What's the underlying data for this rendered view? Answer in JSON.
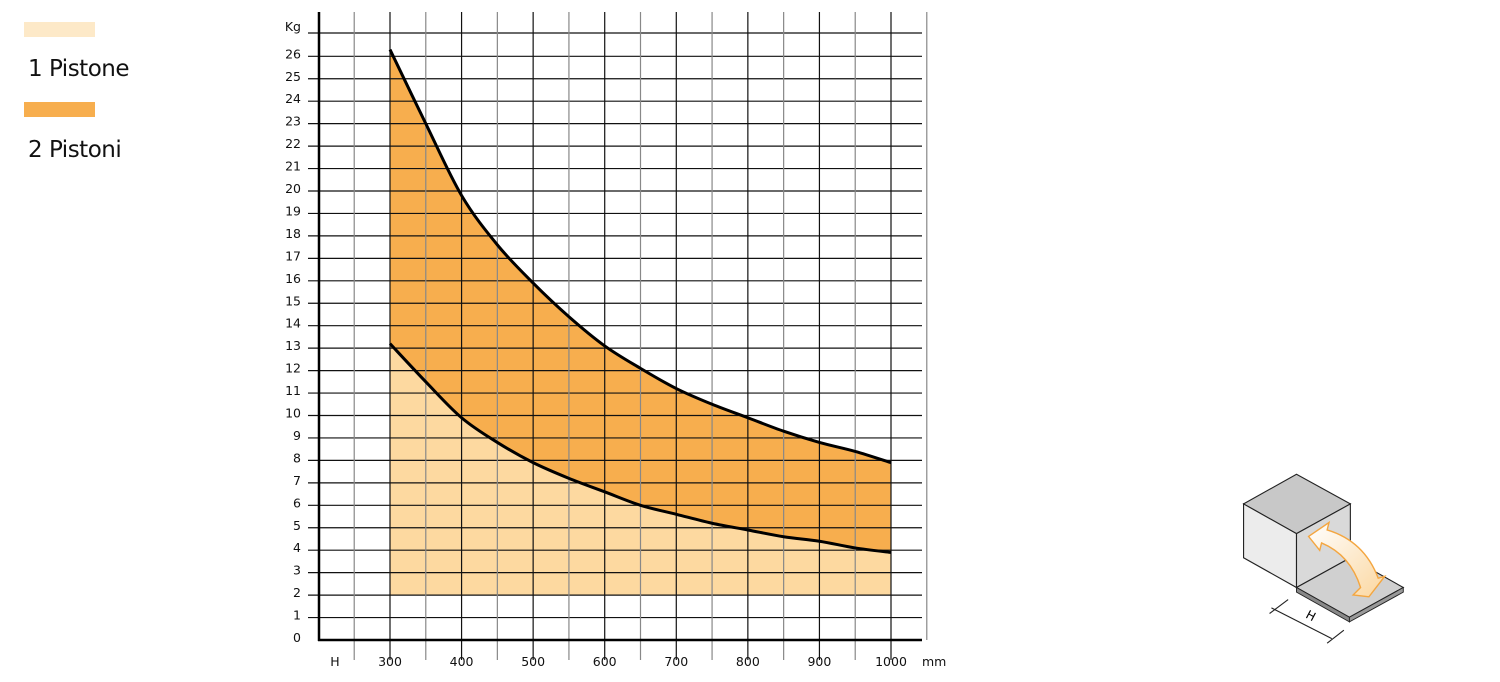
{
  "legend": [
    {
      "label": "1 Pistone",
      "color": "#fde9c8"
    },
    {
      "label": "2 Pistoni",
      "color": "#f7ae4e"
    }
  ],
  "chart_data": {
    "type": "area",
    "title": "",
    "xlabel": "mm",
    "ylabel": "Kg",
    "x_axis_prefix_label": "H",
    "xlim": [
      250,
      1050
    ],
    "ylim": [
      0,
      26
    ],
    "grid": true,
    "x_ticks": [
      300,
      400,
      500,
      600,
      700,
      800,
      900,
      1000
    ],
    "y_ticks": [
      0,
      1,
      2,
      3,
      4,
      5,
      6,
      7,
      8,
      9,
      10,
      11,
      12,
      13,
      14,
      15,
      16,
      17,
      18,
      19,
      20,
      21,
      22,
      23,
      24,
      25,
      26
    ],
    "x": [
      300,
      350,
      400,
      450,
      500,
      550,
      600,
      650,
      700,
      750,
      800,
      850,
      900,
      950,
      1000
    ],
    "baseline": 2,
    "series": [
      {
        "name": "1 Pistone",
        "color": "#fdd9a0",
        "values": [
          13.2,
          11.5,
          9.9,
          8.8,
          7.9,
          7.2,
          6.6,
          6.0,
          5.6,
          5.2,
          4.9,
          4.6,
          4.4,
          4.1,
          3.9
        ]
      },
      {
        "name": "2 Pistoni",
        "color": "#f7ae4e",
        "values": [
          26.3,
          23.0,
          19.8,
          17.6,
          15.9,
          14.4,
          13.1,
          12.1,
          11.2,
          10.5,
          9.9,
          9.3,
          8.8,
          8.4,
          7.9
        ]
      }
    ]
  },
  "diagram": {
    "dimension_label": "H"
  }
}
